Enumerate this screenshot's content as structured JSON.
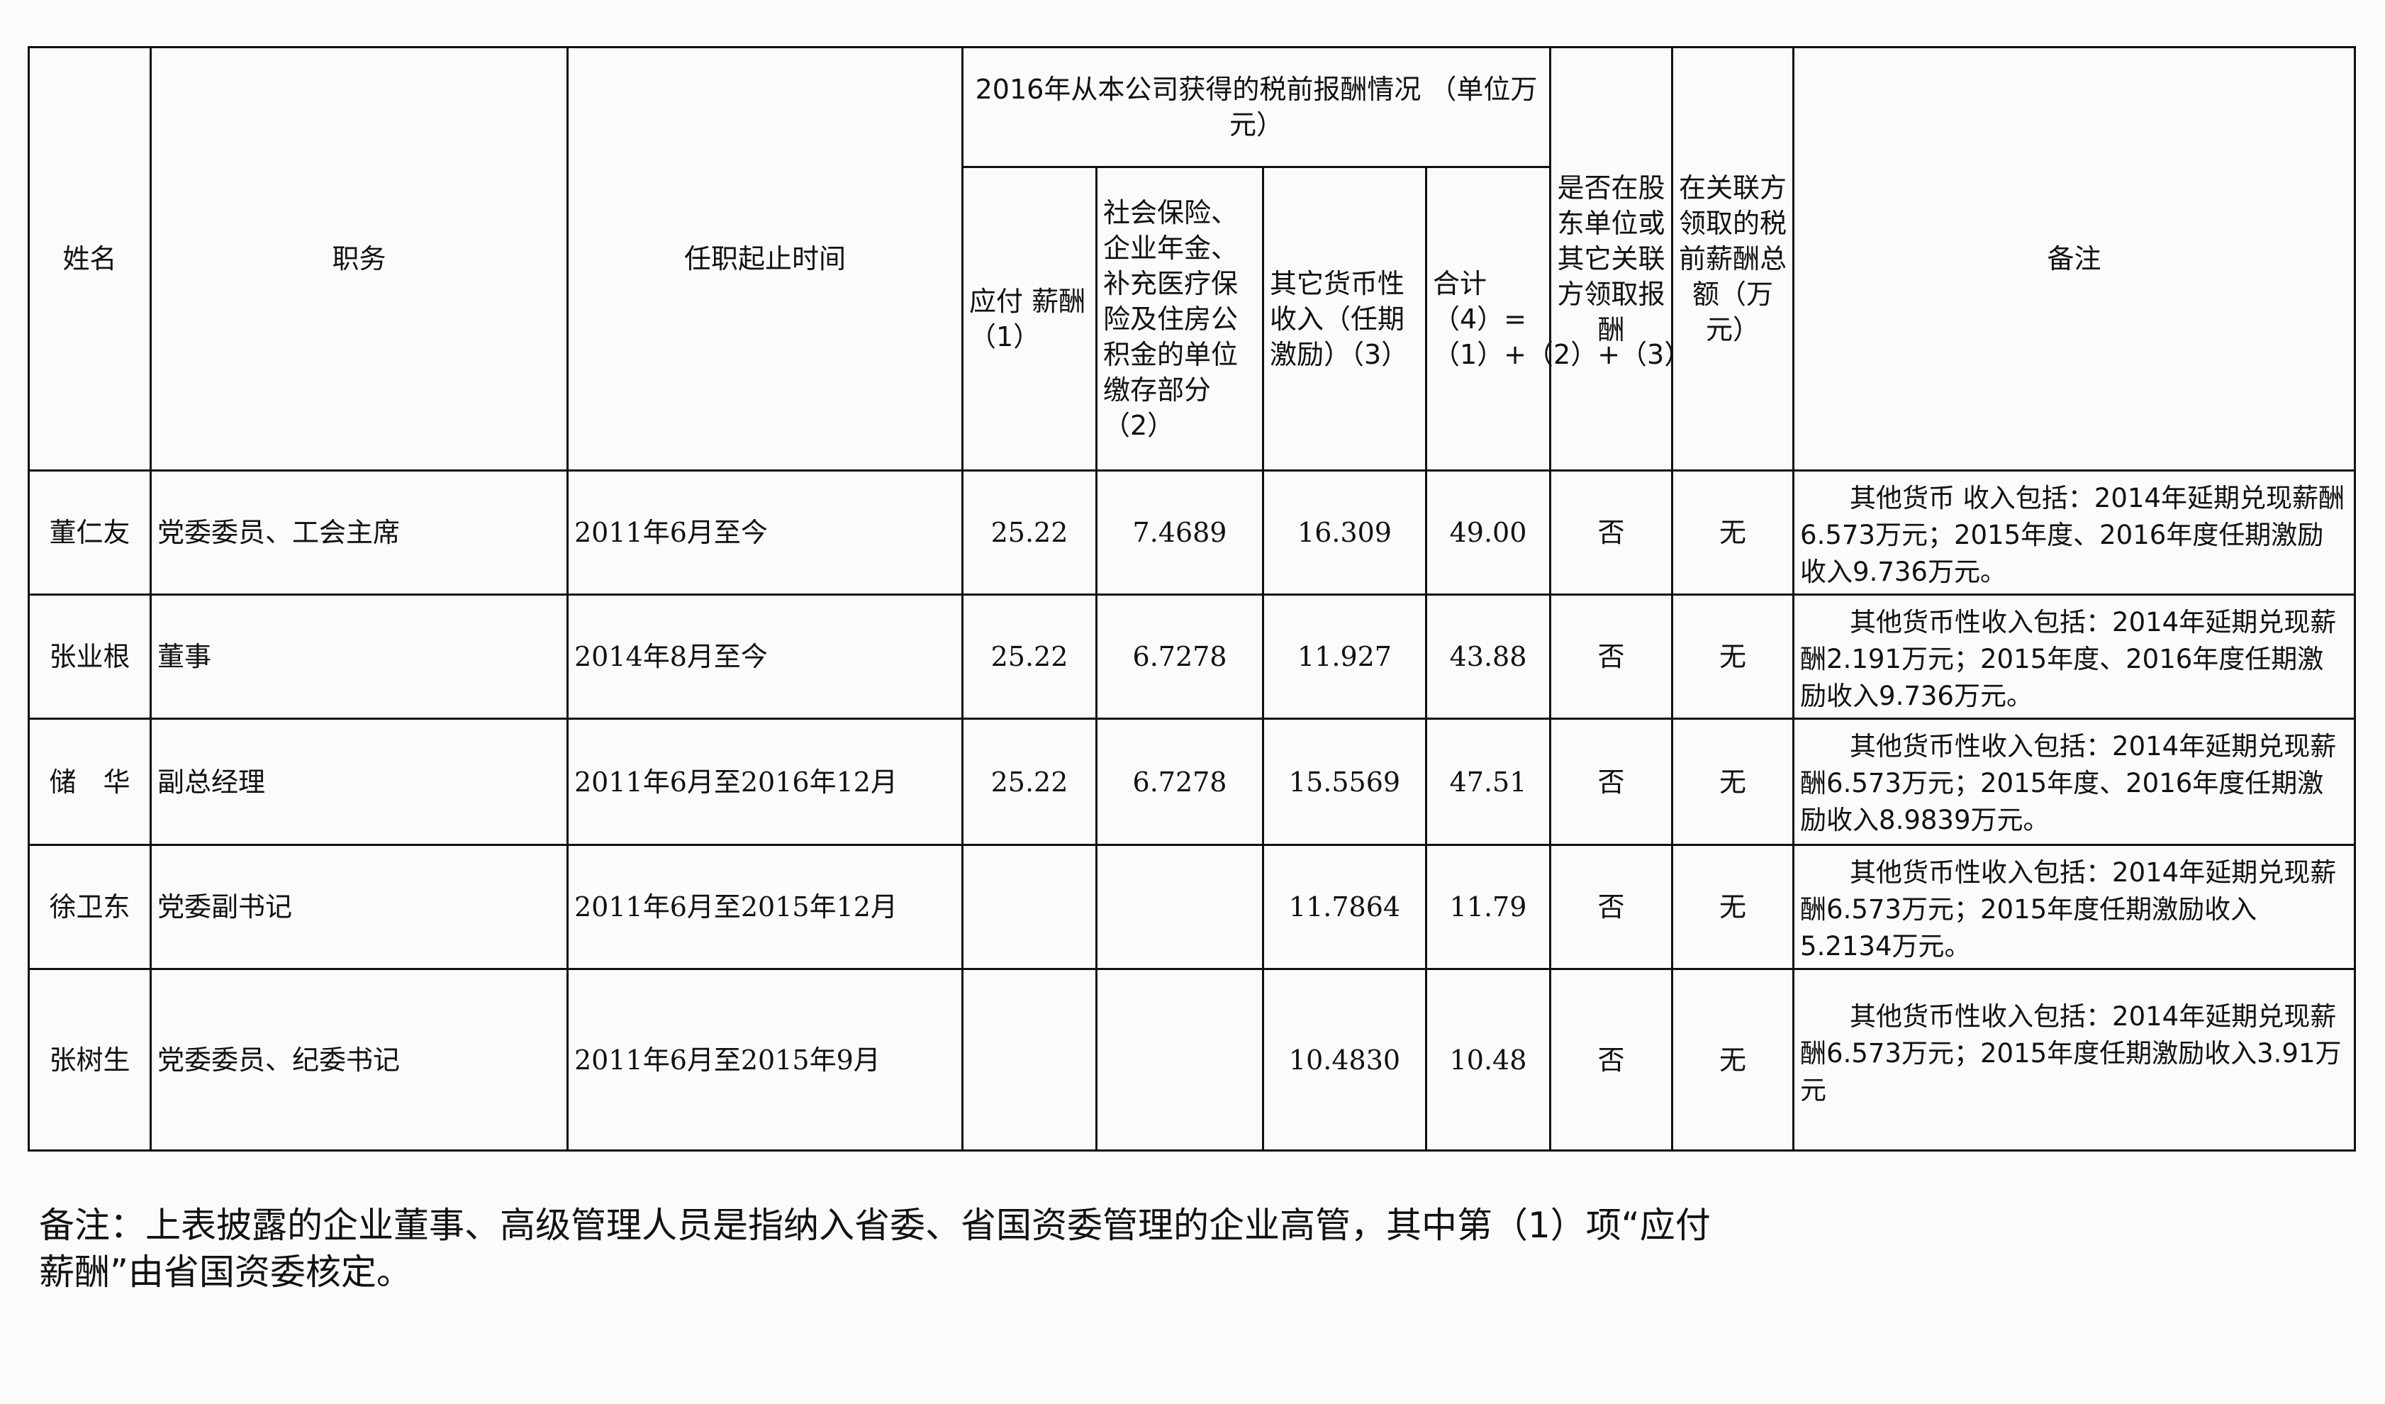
{
  "table": {
    "headers": {
      "name": "姓名",
      "position": "职务",
      "term": "任职起止时间",
      "group": "2016年从本公司获得的税前报酬情况 （单位万元）",
      "payable": "应付 薪酬（1）",
      "social": "社会保险、企业年金、补充医疗保险及住房公积金的单位缴存部分（2）",
      "other": "其它货币性收入（任期激励）（3）",
      "total": "合计（4）=（1）+（2）+（3）",
      "shareholder": "是否在股东单位或其它关联方领取报酬",
      "related": "在关联方领取的税前薪酬总额（万元）",
      "remarks": "备注"
    },
    "rows": [
      {
        "name": "董仁友",
        "position": "党委委员、工会主席",
        "term": "2011年6月至今",
        "payable": "25.22",
        "social": "7.4689",
        "other": "16.309",
        "total": "49.00",
        "shareholder": "否",
        "related": "无",
        "remarks": "其他货币 收入包括：2014年延期兑现薪酬6.573万元；2015年度、2016年度任期激励收入9.736万元。"
      },
      {
        "name": "张业根",
        "position": "董事",
        "term": "2014年8月至今",
        "payable": "25.22",
        "social": "6.7278",
        "other": "11.927",
        "total": "43.88",
        "shareholder": "否",
        "related": "无",
        "remarks": "其他货币性收入包括：2014年延期兑现薪酬2.191万元；2015年度、2016年度任期激励收入9.736万元。"
      },
      {
        "name": "储　华",
        "position": "副总经理",
        "term": "2011年6月至2016年12月",
        "payable": "25.22",
        "social": "6.7278",
        "other": "15.5569",
        "total": "47.51",
        "shareholder": "否",
        "related": "无",
        "remarks": "其他货币性收入包括：2014年延期兑现薪酬6.573万元；2015年度、2016年度任期激励收入8.9839万元。"
      },
      {
        "name": "徐卫东",
        "position": "党委副书记",
        "term": "2011年6月至2015年12月",
        "payable": "",
        "social": "",
        "other": "11.7864",
        "total": "11.79",
        "shareholder": "否",
        "related": "无",
        "remarks": "其他货币性收入包括：2014年延期兑现薪酬6.573万元；2015年度任期激励收入5.2134万元。"
      },
      {
        "name": "张树生",
        "position": "党委委员、纪委书记",
        "term": "2011年6月至2015年9月",
        "payable": "",
        "social": "",
        "other": "10.4830",
        "total": "10.48",
        "shareholder": "否",
        "related": "无",
        "remarks": "其他货币性收入包括：2014年延期兑现薪酬6.573万元；2015年度任期激励收入3.91万元"
      }
    ]
  },
  "footnote": "备注：上表披露的企业董事、高级管理人员是指纳入省委、省国资委管理的企业高管，其中第（1）项“应付薪酬”由省国资委核定。"
}
